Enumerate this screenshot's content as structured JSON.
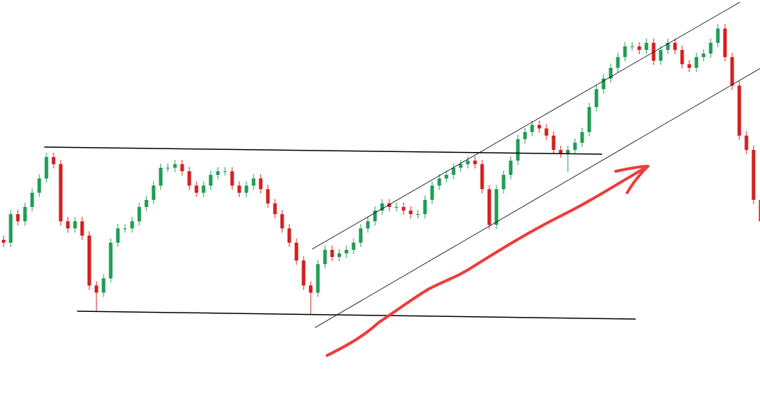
{
  "chart_data": {
    "type": "candlestick",
    "ylim": [
      0,
      566
    ],
    "color_up": "#1f9d55",
    "color_down": "#d3211f",
    "open": [
      230,
      226,
      266,
      256,
      276,
      296,
      316,
      346,
      336,
      256,
      246,
      256,
      236,
      166,
      156,
      176,
      226,
      246,
      246,
      256,
      276,
      286,
      306,
      331,
      331,
      336,
      326,
      306,
      296,
      306,
      321,
      326,
      326,
      306,
      296,
      306,
      316,
      301,
      281,
      266,
      246,
      226,
      201,
      166,
      156,
      196,
      216,
      206,
      211,
      216,
      226,
      246,
      256,
      271,
      281,
      276,
      276,
      271,
      266,
      266,
      286,
      306,
      316,
      321,
      331,
      336,
      341,
      336,
      301,
      251,
      301,
      321,
      341,
      371,
      381,
      391,
      386,
      376,
      356,
      351,
      356,
      366,
      381,
      416,
      441,
      456,
      471,
      486,
      501,
      501,
      496,
      506,
      481,
      496,
      506,
      496,
      476,
      471,
      486,
      491,
      506,
      526,
      486,
      446,
      376,
      356,
      286
    ],
    "high": [
      236,
      272,
      272,
      282,
      302,
      322,
      352,
      352,
      342,
      262,
      262,
      262,
      242,
      172,
      182,
      232,
      252,
      252,
      262,
      282,
      292,
      312,
      337,
      337,
      342,
      342,
      332,
      312,
      312,
      327,
      332,
      332,
      332,
      312,
      312,
      322,
      322,
      307,
      287,
      272,
      252,
      232,
      207,
      172,
      202,
      222,
      222,
      217,
      222,
      232,
      252,
      262,
      277,
      287,
      287,
      282,
      282,
      277,
      272,
      292,
      312,
      322,
      327,
      337,
      342,
      347,
      347,
      342,
      307,
      307,
      327,
      347,
      377,
      387,
      397,
      397,
      392,
      382,
      362,
      362,
      372,
      387,
      422,
      447,
      462,
      477,
      492,
      507,
      507,
      507,
      512,
      512,
      502,
      512,
      512,
      502,
      482,
      492,
      497,
      512,
      532,
      532,
      492,
      452,
      382,
      362,
      292
    ],
    "low": [
      220,
      220,
      250,
      250,
      270,
      290,
      310,
      330,
      250,
      240,
      240,
      230,
      160,
      130,
      150,
      170,
      220,
      240,
      240,
      250,
      270,
      280,
      300,
      325,
      325,
      320,
      300,
      290,
      290,
      300,
      315,
      320,
      300,
      290,
      290,
      300,
      295,
      275,
      260,
      240,
      220,
      195,
      160,
      125,
      150,
      190,
      200,
      200,
      205,
      210,
      220,
      240,
      250,
      265,
      270,
      270,
      265,
      260,
      260,
      260,
      280,
      300,
      310,
      315,
      325,
      330,
      330,
      295,
      245,
      245,
      295,
      315,
      335,
      365,
      375,
      380,
      370,
      350,
      345,
      325,
      350,
      360,
      375,
      410,
      435,
      450,
      465,
      480,
      495,
      490,
      490,
      475,
      475,
      490,
      490,
      470,
      465,
      465,
      480,
      485,
      500,
      480,
      440,
      370,
      350,
      280,
      205
    ],
    "close": [
      226,
      266,
      256,
      276,
      296,
      316,
      346,
      336,
      256,
      246,
      256,
      236,
      166,
      156,
      176,
      226,
      246,
      246,
      256,
      276,
      286,
      306,
      331,
      331,
      336,
      326,
      306,
      296,
      306,
      321,
      326,
      326,
      306,
      296,
      306,
      316,
      301,
      281,
      266,
      246,
      226,
      201,
      166,
      156,
      196,
      216,
      206,
      211,
      216,
      226,
      246,
      256,
      271,
      281,
      276,
      276,
      271,
      266,
      266,
      286,
      306,
      316,
      321,
      331,
      336,
      341,
      336,
      301,
      251,
      301,
      321,
      341,
      371,
      381,
      391,
      386,
      376,
      356,
      351,
      356,
      366,
      381,
      416,
      441,
      456,
      471,
      486,
      501,
      501,
      496,
      506,
      481,
      496,
      506,
      496,
      476,
      471,
      486,
      491,
      506,
      526,
      486,
      446,
      376,
      356,
      286,
      256
    ]
  }
}
